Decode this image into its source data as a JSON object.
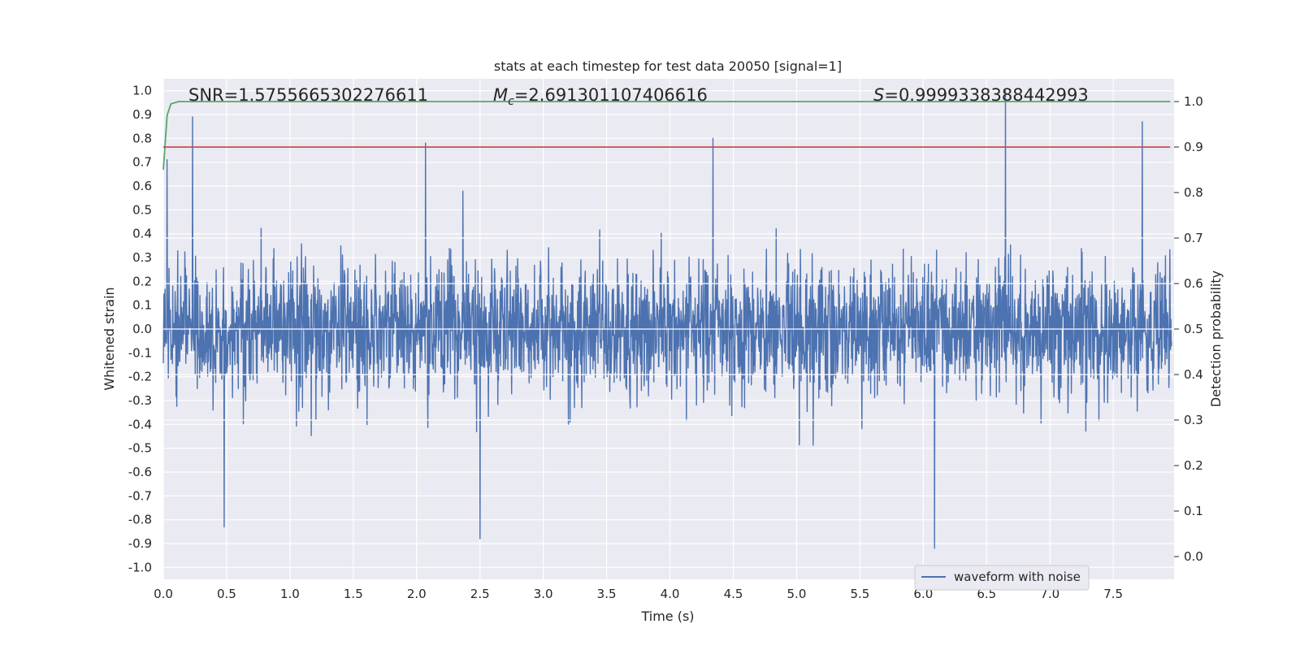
{
  "chart_data": {
    "type": "line",
    "title": "stats at each timestep for test data 20050 [signal=1]",
    "xlabel": "Time (s)",
    "ylabel": "Whitened strain",
    "y2label": "Detection probability",
    "xlim": [
      0.0,
      7.98
    ],
    "ylim": [
      -1.05,
      1.05
    ],
    "y2lim": [
      -0.05,
      1.05
    ],
    "xticks": [
      "0.0",
      "0.5",
      "1.0",
      "1.5",
      "2.0",
      "2.5",
      "3.0",
      "3.5",
      "4.0",
      "4.5",
      "5.0",
      "5.5",
      "6.0",
      "6.5",
      "7.0",
      "7.5"
    ],
    "yticks": [
      "1.0",
      "0.9",
      "0.8",
      "0.7",
      "0.6",
      "0.5",
      "0.4",
      "0.3",
      "0.2",
      "0.1",
      "0.0",
      "-0.1",
      "-0.2",
      "-0.3",
      "-0.4",
      "-0.5",
      "-0.6",
      "-0.7",
      "-0.8",
      "-0.9",
      "-1.0"
    ],
    "y2ticks": [
      "1.0",
      "0.9",
      "0.8",
      "0.7",
      "0.6",
      "0.5",
      "0.4",
      "0.3",
      "0.2",
      "0.1",
      "0.0"
    ],
    "annotations": {
      "snr": "SNR=1.5755665302276611",
      "mc_symbol": "M",
      "mc_sub": "c",
      "mc_value": "=2.691301107406616",
      "s_symbol": "S",
      "s_value": "=0.9999338388442993"
    },
    "legend": {
      "position": "lower-right",
      "entries": [
        "waveform with noise"
      ]
    },
    "grid": true,
    "series": [
      {
        "name": "waveform with noise",
        "color": "#4c72b0",
        "axis": "left",
        "envelope_note": "dense noisy waveform, typical range -0.5 to 0.5",
        "peaks": [
          {
            "x": 0.03,
            "y": 0.71
          },
          {
            "x": 0.23,
            "y": 0.89
          },
          {
            "x": 0.48,
            "y": -0.83
          },
          {
            "x": 2.07,
            "y": 0.78
          },
          {
            "x": 2.5,
            "y": -0.88
          },
          {
            "x": 4.34,
            "y": 0.8
          },
          {
            "x": 6.09,
            "y": -0.92
          },
          {
            "x": 6.65,
            "y": 1.0
          },
          {
            "x": 7.73,
            "y": 0.87
          }
        ]
      },
      {
        "name": "",
        "color": "#55a868",
        "axis": "right",
        "x": [
          0.0,
          0.03,
          0.06,
          0.12,
          7.95
        ],
        "y": [
          0.85,
          0.97,
          0.995,
          1.0,
          1.0
        ]
      },
      {
        "name": "",
        "color": "#c44e52",
        "axis": "right",
        "x": [
          0.0,
          7.95
        ],
        "y": [
          0.9,
          0.9
        ]
      }
    ]
  }
}
